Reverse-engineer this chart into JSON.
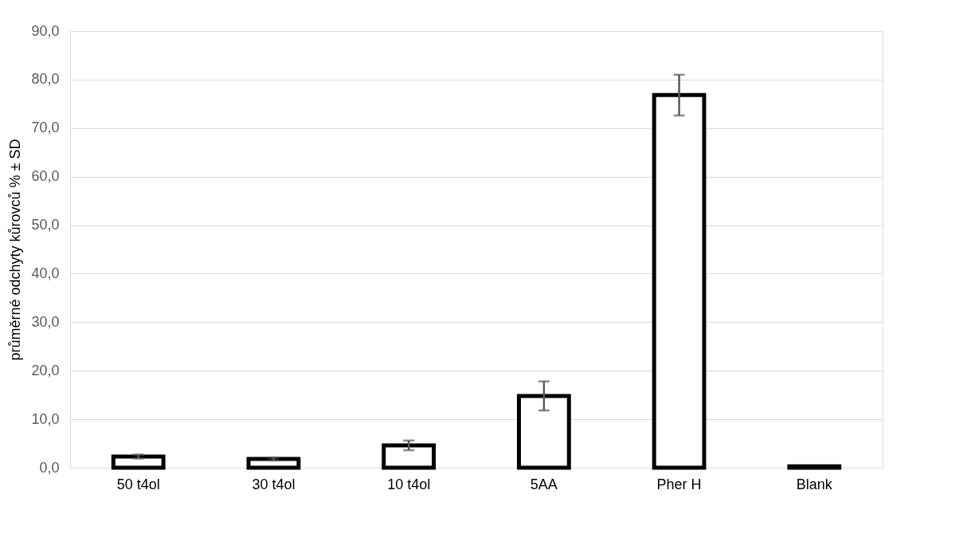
{
  "chart_data": {
    "type": "bar",
    "ylabel": "průměrné odchyty kůrovců % ± SD",
    "categories": [
      "50 t4ol",
      "30 t4ol",
      "10 t4ol",
      "5AA",
      "Pher H",
      "Blank"
    ],
    "values": [
      2.3,
      1.8,
      4.6,
      14.8,
      76.8,
      0.3
    ],
    "errors": [
      0.4,
      0.3,
      1.0,
      3.0,
      4.2,
      null
    ],
    "color": "#ffffff",
    "ylim": [
      0,
      90
    ],
    "yticks": [
      {
        "value": 0,
        "label": "0,0"
      },
      {
        "value": 10,
        "label": "10,0"
      },
      {
        "value": 20,
        "label": "20,0"
      },
      {
        "value": 30,
        "label": "30,0"
      },
      {
        "value": 40,
        "label": "40,0"
      },
      {
        "value": 50,
        "label": "50,0"
      },
      {
        "value": 60,
        "label": "60,0"
      },
      {
        "value": 70,
        "label": "70,0"
      },
      {
        "value": 80,
        "label": "80,0"
      },
      {
        "value": 90,
        "label": "90,0"
      }
    ],
    "grid": "y"
  }
}
